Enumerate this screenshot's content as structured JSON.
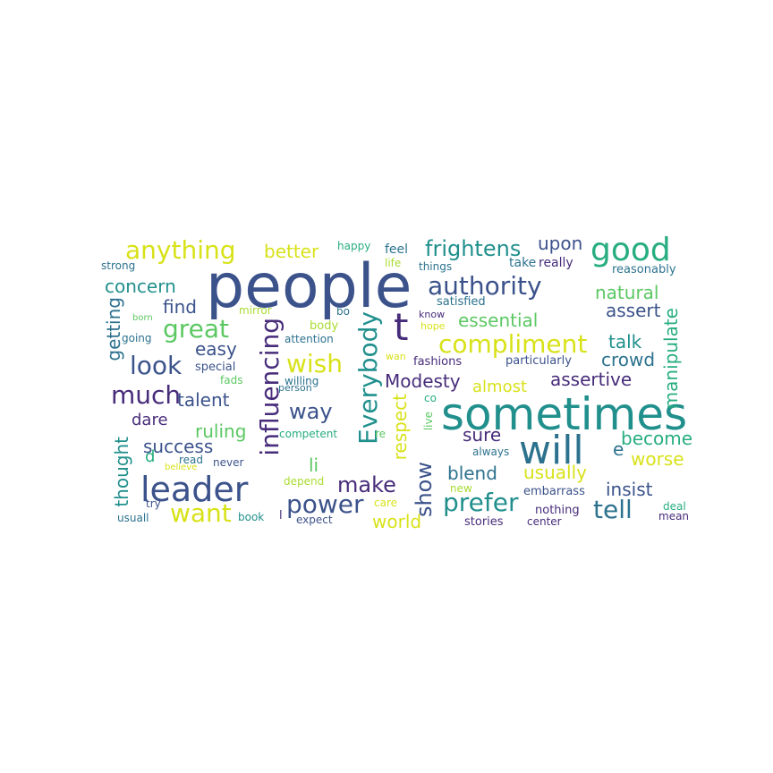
{
  "palette": {
    "purple": "#472c7a",
    "indigo": "#3b528b",
    "steel": "#2c728e",
    "teal": "#21908d",
    "sea": "#27ad81",
    "green": "#5cc863",
    "lime": "#aadc32",
    "yellow": "#d8e219"
  },
  "words": [
    {
      "text": "people"
    },
    {
      "text": "sometimes"
    },
    {
      "text": "will"
    },
    {
      "text": "leader"
    },
    {
      "text": "good"
    },
    {
      "text": "anything"
    },
    {
      "text": "authority"
    },
    {
      "text": "compliment"
    },
    {
      "text": "influencing"
    },
    {
      "text": "Everybody"
    },
    {
      "text": "t"
    },
    {
      "text": "great"
    },
    {
      "text": "look"
    },
    {
      "text": "much"
    },
    {
      "text": "wish"
    },
    {
      "text": "power"
    },
    {
      "text": "make"
    },
    {
      "text": "want"
    },
    {
      "text": "tell"
    },
    {
      "text": "prefer"
    },
    {
      "text": "way"
    },
    {
      "text": "show"
    },
    {
      "text": "frightens"
    },
    {
      "text": "concern"
    },
    {
      "text": "better"
    },
    {
      "text": "upon"
    },
    {
      "text": "find"
    },
    {
      "text": "natural"
    },
    {
      "text": "essential"
    },
    {
      "text": "assert"
    },
    {
      "text": "easy"
    },
    {
      "text": "talk"
    },
    {
      "text": "crowd"
    },
    {
      "text": "Modesty"
    },
    {
      "text": "assertive"
    },
    {
      "text": "talent"
    },
    {
      "text": "almost"
    },
    {
      "text": "manipulate"
    },
    {
      "text": "getting"
    },
    {
      "text": "dare"
    },
    {
      "text": "ruling"
    },
    {
      "text": "success"
    },
    {
      "text": "sure"
    },
    {
      "text": "become"
    },
    {
      "text": "respect"
    },
    {
      "text": "blend"
    },
    {
      "text": "usually"
    },
    {
      "text": "worse"
    },
    {
      "text": "insist"
    },
    {
      "text": "world"
    },
    {
      "text": "li"
    },
    {
      "text": "thought"
    },
    {
      "text": "e"
    },
    {
      "text": "d"
    },
    {
      "text": "happy"
    },
    {
      "text": "feel"
    },
    {
      "text": "life"
    },
    {
      "text": "things"
    },
    {
      "text": "take"
    },
    {
      "text": "really"
    },
    {
      "text": "strong"
    },
    {
      "text": "reasonably"
    },
    {
      "text": "mirror"
    },
    {
      "text": "bo"
    },
    {
      "text": "satisfied"
    },
    {
      "text": "know"
    },
    {
      "text": "hope"
    },
    {
      "text": "born"
    },
    {
      "text": "body"
    },
    {
      "text": "going"
    },
    {
      "text": "attention"
    },
    {
      "text": "wan"
    },
    {
      "text": "fashions"
    },
    {
      "text": "particularly"
    },
    {
      "text": "special"
    },
    {
      "text": "fads"
    },
    {
      "text": "willing"
    },
    {
      "text": "person"
    },
    {
      "text": "co"
    },
    {
      "text": "competent"
    },
    {
      "text": "re"
    },
    {
      "text": "live"
    },
    {
      "text": "always"
    },
    {
      "text": "read"
    },
    {
      "text": "believe"
    },
    {
      "text": "never"
    },
    {
      "text": "depend"
    },
    {
      "text": "new"
    },
    {
      "text": "embarrass"
    },
    {
      "text": "try"
    },
    {
      "text": "care"
    },
    {
      "text": "nothing"
    },
    {
      "text": "deal"
    },
    {
      "text": "usuall"
    },
    {
      "text": "book"
    },
    {
      "text": "l"
    },
    {
      "text": "expect"
    },
    {
      "text": "stories"
    },
    {
      "text": "center"
    },
    {
      "text": "mean"
    }
  ]
}
